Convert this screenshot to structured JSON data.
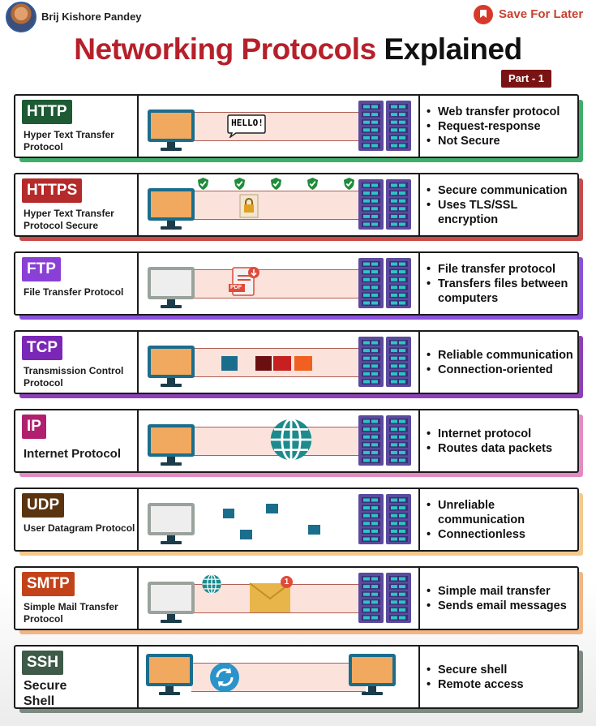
{
  "header": {
    "author": "Brij Kishore Pandey",
    "save_label": "Save For Later"
  },
  "title": {
    "part1": "Networking Protocols",
    "part2": "Explained",
    "part": "Part - 1"
  },
  "protocols": [
    {
      "abbr": "HTTP",
      "name": "Hyper Text Transfer Protocol",
      "badge_color": "#1e5a33",
      "accent": "#3fae6a",
      "features": [
        "Web transfer protocol",
        "Request-response",
        "Not Secure"
      ],
      "speech": "HELLO!"
    },
    {
      "abbr": "HTTPS",
      "name": "Hyper Text Transfer Protocol Secure",
      "badge_color": "#b52a2a",
      "accent": "#c94a4a",
      "features": [
        "Secure communication",
        "Uses TLS/SSL encryption"
      ]
    },
    {
      "abbr": "FTP",
      "name": "File Transfer Protocol",
      "badge_color": "#8a3fd6",
      "accent": "#8b4fdc",
      "features": [
        "File transfer protocol",
        "Transfers files between computers"
      ],
      "file_label": "PDF"
    },
    {
      "abbr": "TCP",
      "name": "Transmission Control Protocol",
      "badge_color": "#7a27b8",
      "accent": "#8e3fb8",
      "features": [
        "Reliable communication",
        "Connection-oriented"
      ]
    },
    {
      "abbr": "IP",
      "name": "Internet Protocol",
      "badge_color": "#b0206e",
      "accent": "#e38ac3",
      "features": [
        "Internet protocol",
        "Routes data packets"
      ]
    },
    {
      "abbr": "UDP",
      "name": "User Datagram Protocol",
      "badge_color": "#5a3410",
      "accent": "#f3c98c",
      "features": [
        "Unreliable communication",
        "Connectionless"
      ]
    },
    {
      "abbr": "SMTP",
      "name": "Simple Mail Transfer Protocol",
      "badge_color": "#c2431a",
      "accent": "#f1b684",
      "features": [
        "Simple mail transfer",
        "Sends email messages"
      ],
      "mail_count": "1"
    },
    {
      "abbr": "SSH",
      "name": "Secure Shell",
      "badge_color": "#3f5a49",
      "accent": "#7c8a82",
      "features": [
        "Secure shell",
        "Remote access"
      ]
    }
  ],
  "icons": {
    "monitor": "monitor-icon",
    "server": "server-rack-icon",
    "shield": "shield-check-icon",
    "globe": "globe-icon",
    "mail": "envelope-icon",
    "sync": "sync-icon",
    "file": "pdf-file-icon",
    "lock": "padlock-icon"
  }
}
